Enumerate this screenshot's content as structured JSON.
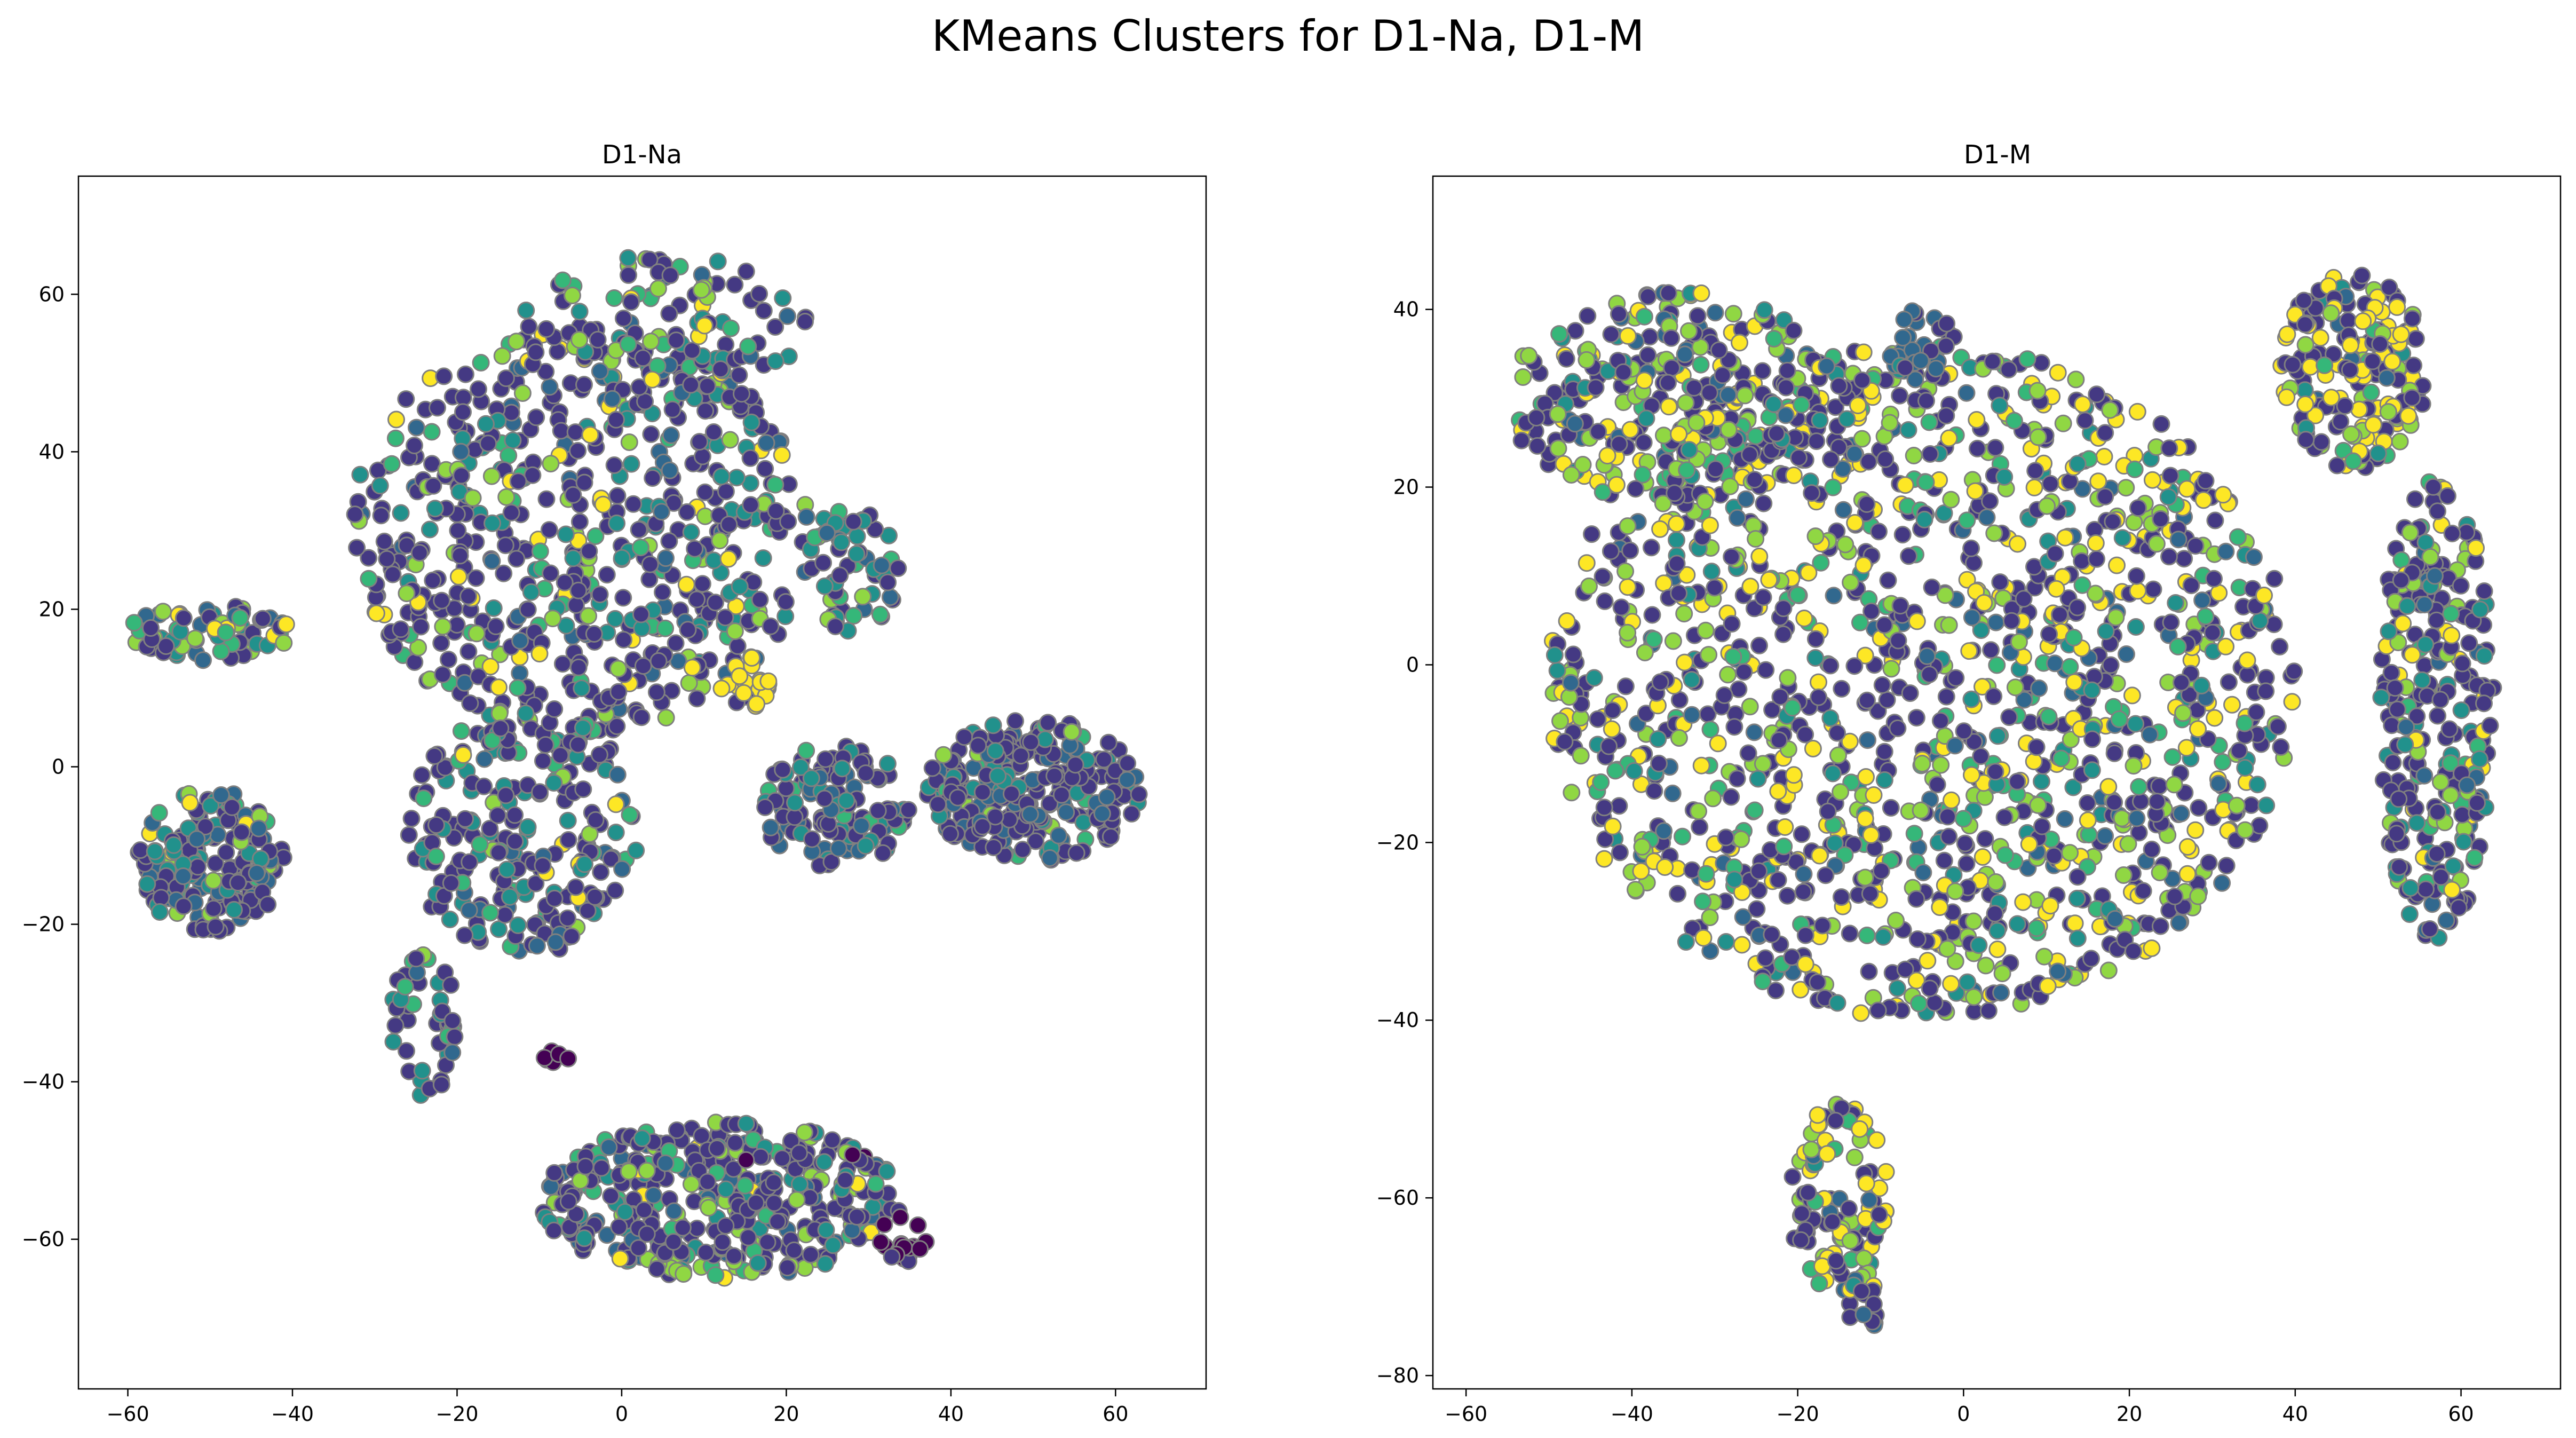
{
  "title": "KMeans Clusters for D1-Na, D1-M",
  "chart_data": [
    {
      "type": "scatter",
      "title": "D1-Na",
      "xlabel": "",
      "ylabel": "",
      "xlim": [
        -66,
        71
      ],
      "ylim": [
        -79,
        75
      ],
      "xticks": [
        -60,
        -40,
        -20,
        0,
        20,
        40,
        60
      ],
      "yticks": [
        -60,
        -40,
        -20,
        0,
        20,
        40,
        60
      ],
      "marker_edge_color": "#808080",
      "palette": [
        "#440154",
        "#443983",
        "#31688e",
        "#21918c",
        "#35b779",
        "#90d743",
        "#fde725"
      ],
      "regions": [
        {
          "cx": -5,
          "cy": 30,
          "rx": 28,
          "ry": 26,
          "n": 620,
          "mix": [
            0,
            60,
            8,
            12,
            8,
            8,
            4
          ]
        },
        {
          "cx": 5,
          "cy": 55,
          "rx": 18,
          "ry": 10,
          "n": 120,
          "mix": [
            0,
            50,
            10,
            14,
            12,
            10,
            4
          ]
        },
        {
          "cx": -50,
          "cy": 17,
          "rx": 10,
          "ry": 3.5,
          "n": 70,
          "mix": [
            0,
            45,
            15,
            10,
            10,
            15,
            5
          ]
        },
        {
          "cx": 28,
          "cy": 25,
          "rx": 6,
          "ry": 8,
          "n": 60,
          "mix": [
            0,
            40,
            15,
            30,
            10,
            5,
            0
          ]
        },
        {
          "cx": 15,
          "cy": 10,
          "rx": 3,
          "ry": 3,
          "n": 20,
          "mix": [
            0,
            10,
            0,
            0,
            0,
            10,
            80
          ]
        },
        {
          "cx": -50,
          "cy": -12,
          "rx": 9,
          "ry": 9,
          "n": 200,
          "mix": [
            0,
            50,
            20,
            15,
            5,
            7,
            3
          ]
        },
        {
          "cx": -12,
          "cy": -8,
          "rx": 14,
          "ry": 16,
          "n": 240,
          "mix": [
            0,
            55,
            10,
            20,
            8,
            5,
            2
          ]
        },
        {
          "cx": 26,
          "cy": -5,
          "rx": 9,
          "ry": 8,
          "n": 120,
          "mix": [
            0,
            55,
            20,
            20,
            5,
            0,
            0
          ]
        },
        {
          "cx": 50,
          "cy": -3,
          "rx": 13,
          "ry": 9,
          "n": 260,
          "mix": [
            0,
            65,
            15,
            12,
            5,
            3,
            0
          ]
        },
        {
          "cx": -24,
          "cy": -33,
          "rx": 4,
          "ry": 10,
          "n": 45,
          "mix": [
            0,
            55,
            10,
            20,
            10,
            5,
            0
          ]
        },
        {
          "cx": 12,
          "cy": -55,
          "rx": 22,
          "ry": 10,
          "n": 420,
          "mix": [
            1,
            55,
            10,
            12,
            7,
            12,
            3
          ]
        },
        {
          "cx": 34,
          "cy": -60,
          "rx": 3,
          "ry": 3,
          "n": 20,
          "mix": [
            90,
            10,
            0,
            0,
            0,
            0,
            0
          ]
        },
        {
          "cx": -8,
          "cy": -37,
          "rx": 1.5,
          "ry": 1.5,
          "n": 6,
          "mix": [
            100,
            0,
            0,
            0,
            0,
            0,
            0
          ]
        }
      ]
    },
    {
      "type": "scatter",
      "title": "D1-M",
      "xlabel": "",
      "ylabel": "",
      "xlim": [
        -64,
        72
      ],
      "ylim": [
        -81.5,
        55
      ],
      "xticks": [
        -60,
        -40,
        -20,
        0,
        20,
        40,
        60
      ],
      "yticks": [
        -80,
        -60,
        -40,
        -20,
        0,
        20,
        40
      ],
      "marker_edge_color": "#808080",
      "palette": [
        "#440154",
        "#443983",
        "#31688e",
        "#21918c",
        "#35b779",
        "#90d743",
        "#fde725"
      ],
      "regions": [
        {
          "cx": -5,
          "cy": -2,
          "rx": 45,
          "ry": 38,
          "n": 1450,
          "mix": [
            0,
            40,
            8,
            10,
            8,
            16,
            18
          ]
        },
        {
          "cx": -35,
          "cy": 30,
          "rx": 20,
          "ry": 12,
          "n": 280,
          "mix": [
            0,
            40,
            10,
            8,
            8,
            17,
            17
          ]
        },
        {
          "cx": -5,
          "cy": 36,
          "rx": 4,
          "ry": 4,
          "n": 30,
          "mix": [
            0,
            30,
            60,
            10,
            0,
            0,
            0
          ]
        },
        {
          "cx": 47,
          "cy": 33,
          "rx": 9,
          "ry": 11,
          "n": 180,
          "mix": [
            0,
            45,
            5,
            5,
            5,
            10,
            30
          ]
        },
        {
          "cx": 57,
          "cy": -5,
          "rx": 7,
          "ry": 26,
          "n": 280,
          "mix": [
            0,
            55,
            8,
            10,
            7,
            10,
            10
          ]
        },
        {
          "cx": -15,
          "cy": -60,
          "rx": 6,
          "ry": 11,
          "n": 110,
          "mix": [
            0,
            40,
            5,
            5,
            5,
            15,
            30
          ]
        },
        {
          "cx": -12,
          "cy": -72,
          "rx": 2,
          "ry": 3.5,
          "n": 15,
          "mix": [
            0,
            60,
            20,
            10,
            0,
            0,
            10
          ]
        }
      ]
    }
  ]
}
